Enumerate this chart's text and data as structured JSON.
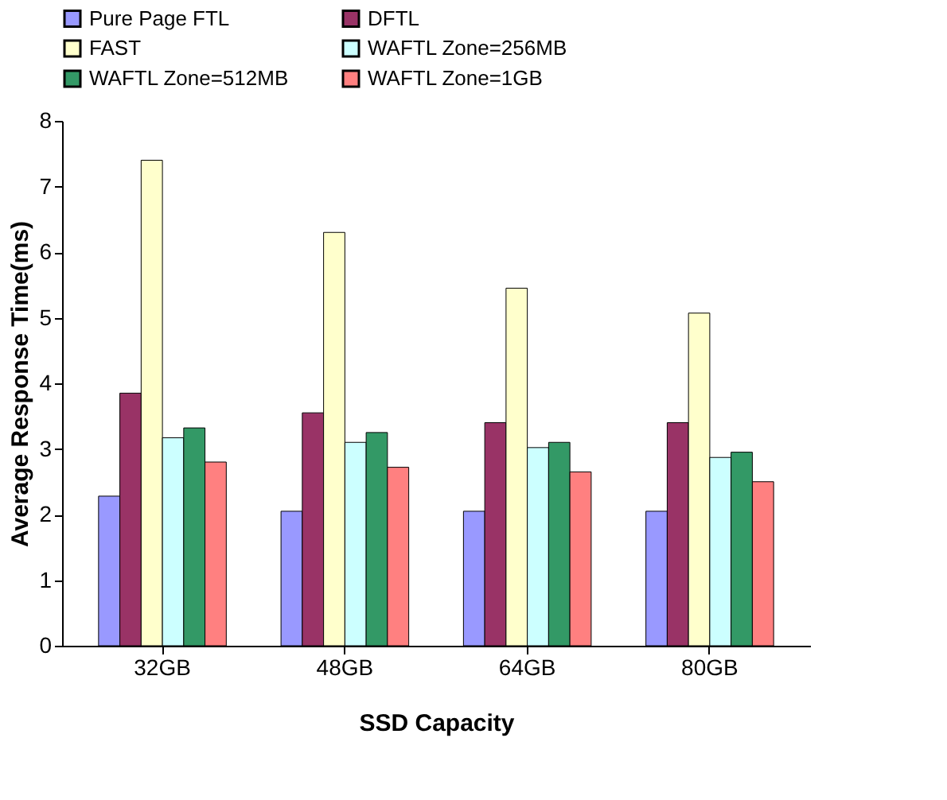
{
  "chart_data": {
    "type": "bar",
    "xlabel": "SSD Capacity",
    "ylabel": "Average Response Time(ms)",
    "categories": [
      "32GB",
      "48GB",
      "64GB",
      "80GB"
    ],
    "series": [
      {
        "name": "Pure Page FTL",
        "color": "#9999ff",
        "values": [
          2.28,
          2.05,
          2.05,
          2.05
        ]
      },
      {
        "name": "DFTL",
        "color": "#993366",
        "values": [
          3.85,
          3.55,
          3.4,
          3.4
        ]
      },
      {
        "name": "FAST",
        "color": "#ffffcc",
        "values": [
          7.4,
          6.3,
          5.45,
          5.07
        ]
      },
      {
        "name": "WAFTL Zone=256MB",
        "color": "#ccffff",
        "values": [
          3.17,
          3.1,
          3.02,
          2.87
        ]
      },
      {
        "name": "WAFTL Zone=512MB",
        "color": "#339966",
        "values": [
          3.32,
          3.25,
          3.1,
          2.95
        ]
      },
      {
        "name": "WAFTL Zone=1GB",
        "color": "#ff8080",
        "values": [
          2.8,
          2.72,
          2.65,
          2.5
        ]
      }
    ],
    "ylim": [
      0,
      8
    ],
    "yticks": [
      0,
      1,
      2,
      3,
      4,
      5,
      6,
      7,
      8
    ],
    "grid": false,
    "legend": "top"
  }
}
